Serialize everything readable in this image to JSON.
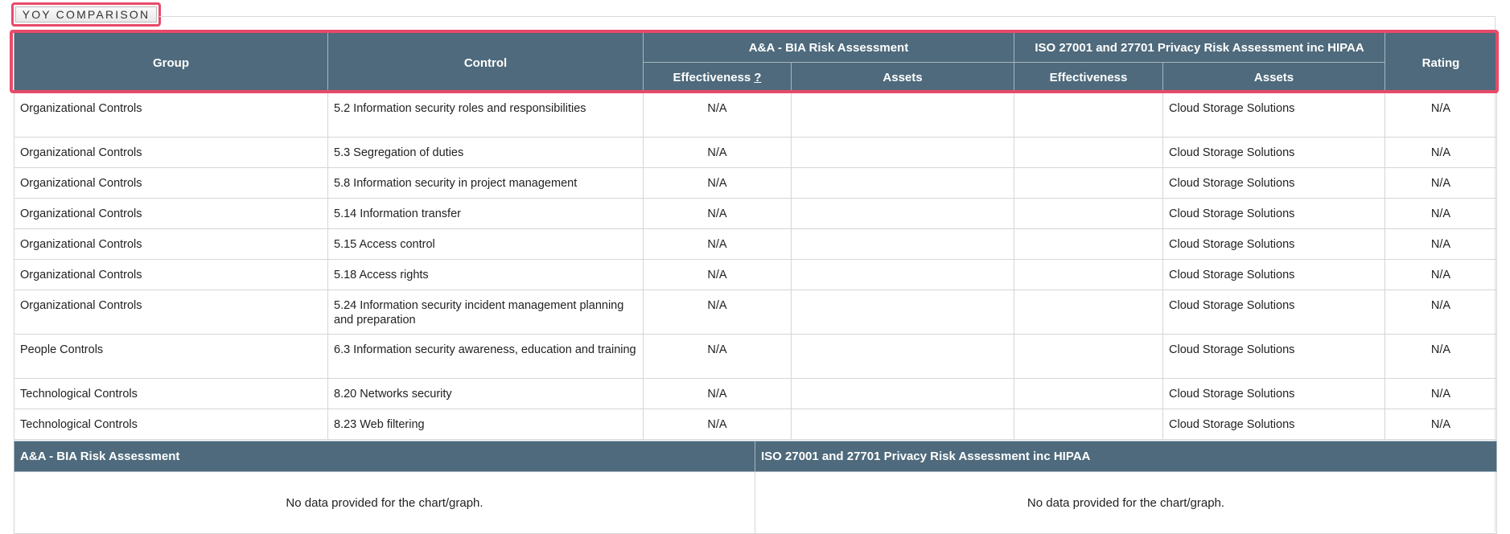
{
  "tab": {
    "label": "YOY COMPARISON"
  },
  "table": {
    "headers": {
      "group": "Group",
      "control": "Control",
      "bia_title": "A&A - BIA Risk Assessment",
      "iso_title": "ISO 27001 and 27701 Privacy Risk Assessment inc HIPAA",
      "rating": "Rating",
      "effectiveness": "Effectiveness",
      "help": "?",
      "assets": "Assets",
      "iso_effectiveness": "Effectiveness",
      "iso_assets": "Assets"
    },
    "rows": [
      {
        "group": "Organizational Controls",
        "control": "5.2 Information security roles and responsibilities",
        "bia_eff": "N/A",
        "bia_assets": "",
        "iso_eff": "",
        "iso_assets": "Cloud Storage Solutions",
        "rating": "N/A"
      },
      {
        "group": "Organizational Controls",
        "control": "5.3 Segregation of duties",
        "bia_eff": "N/A",
        "bia_assets": "",
        "iso_eff": "",
        "iso_assets": "Cloud Storage Solutions",
        "rating": "N/A"
      },
      {
        "group": "Organizational Controls",
        "control": "5.8 Information security in project management",
        "bia_eff": "N/A",
        "bia_assets": "",
        "iso_eff": "",
        "iso_assets": "Cloud Storage Solutions",
        "rating": "N/A"
      },
      {
        "group": "Organizational Controls",
        "control": "5.14 Information transfer",
        "bia_eff": "N/A",
        "bia_assets": "",
        "iso_eff": "",
        "iso_assets": "Cloud Storage Solutions",
        "rating": "N/A"
      },
      {
        "group": "Organizational Controls",
        "control": "5.15 Access control",
        "bia_eff": "N/A",
        "bia_assets": "",
        "iso_eff": "",
        "iso_assets": "Cloud Storage Solutions",
        "rating": "N/A"
      },
      {
        "group": "Organizational Controls",
        "control": "5.18 Access rights",
        "bia_eff": "N/A",
        "bia_assets": "",
        "iso_eff": "",
        "iso_assets": "Cloud Storage Solutions",
        "rating": "N/A"
      },
      {
        "group": "Organizational Controls",
        "control": "5.24 Information security incident management planning and preparation",
        "bia_eff": "N/A",
        "bia_assets": "",
        "iso_eff": "",
        "iso_assets": "Cloud Storage Solutions",
        "rating": "N/A"
      },
      {
        "group": "People Controls",
        "control": "6.3 Information security awareness, education and training",
        "bia_eff": "N/A",
        "bia_assets": "",
        "iso_eff": "",
        "iso_assets": "Cloud Storage Solutions",
        "rating": "N/A"
      },
      {
        "group": "Technological Controls",
        "control": "8.20 Networks security",
        "bia_eff": "N/A",
        "bia_assets": "",
        "iso_eff": "",
        "iso_assets": "Cloud Storage Solutions",
        "rating": "N/A"
      },
      {
        "group": "Technological Controls",
        "control": "8.23 Web filtering",
        "bia_eff": "N/A",
        "bia_assets": "",
        "iso_eff": "",
        "iso_assets": "Cloud Storage Solutions",
        "rating": "N/A"
      }
    ]
  },
  "summary": {
    "left_title": "A&A - BIA Risk Assessment",
    "right_title": "ISO 27001 and 27701 Privacy Risk Assessment inc HIPAA",
    "left_message": "No data provided for the chart/graph.",
    "right_message": "No data provided for the chart/graph."
  }
}
